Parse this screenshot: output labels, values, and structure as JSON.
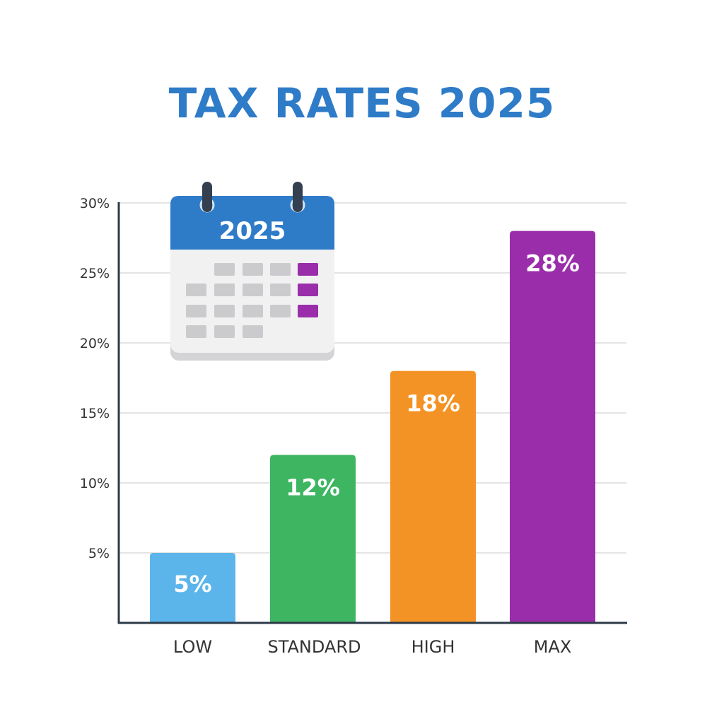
{
  "chart_data": {
    "type": "bar",
    "title": "TAX RATES 2025",
    "categories": [
      "LOW",
      "STANDARD",
      "HIGH",
      "MAX"
    ],
    "values": [
      5,
      12,
      18,
      28
    ],
    "data_labels": [
      "5%",
      "12%",
      "18%",
      "28%"
    ],
    "colors": [
      "#5BB5EA",
      "#3DB561",
      "#F39325",
      "#9A2EAA"
    ],
    "ylim": [
      0,
      30
    ],
    "yticks": [
      5,
      10,
      15,
      20,
      25,
      30
    ],
    "ytick_labels": [
      "5%",
      "10%",
      "15%",
      "20%",
      "25%",
      "30%"
    ],
    "grid": true,
    "xlabel": "",
    "ylabel": ""
  },
  "calendar_icon": {
    "year": "2025",
    "header_color": "#2E7BC8",
    "highlight_color": "#9A2EAA"
  }
}
